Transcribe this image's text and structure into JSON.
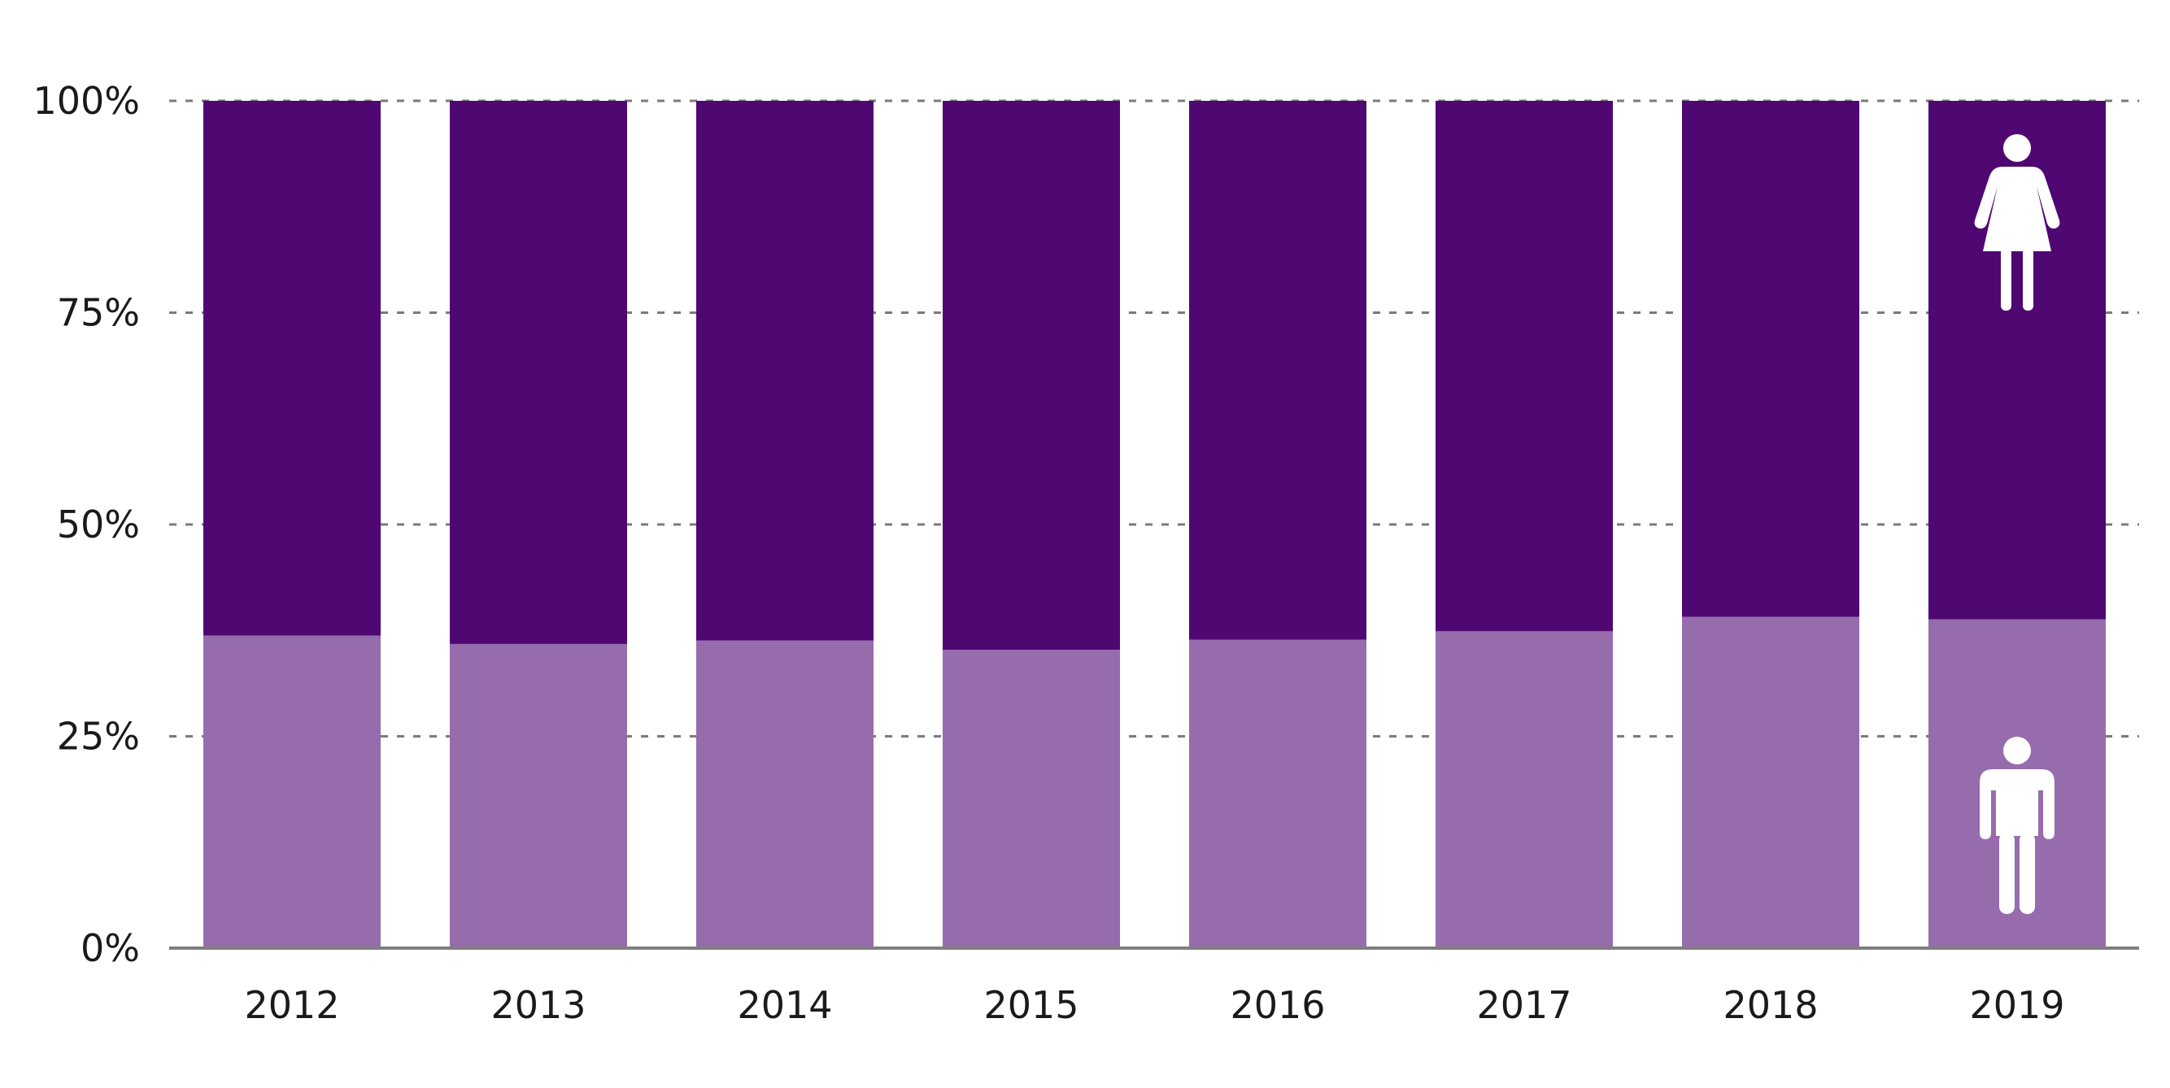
{
  "chart_data": {
    "type": "bar",
    "stacked": true,
    "percent": true,
    "categories": [
      "2012",
      "2013",
      "2014",
      "2015",
      "2016",
      "2017",
      "2018",
      "2019"
    ],
    "series": [
      {
        "icon": "male-person-icon",
        "color": "#966cad",
        "values": [
          36.9,
          35.9,
          36.3,
          35.2,
          36.4,
          37.4,
          39.1,
          38.8
        ]
      },
      {
        "icon": "female-person-icon",
        "color": "#4f0872",
        "values": [
          63.1,
          64.1,
          63.7,
          64.8,
          63.6,
          62.6,
          60.9,
          61.2
        ]
      }
    ],
    "yticks": [
      "0%",
      "25%",
      "50%",
      "75%",
      "100%"
    ],
    "ylim": [
      0,
      100
    ],
    "grid": true,
    "grid_style": "dashed"
  }
}
